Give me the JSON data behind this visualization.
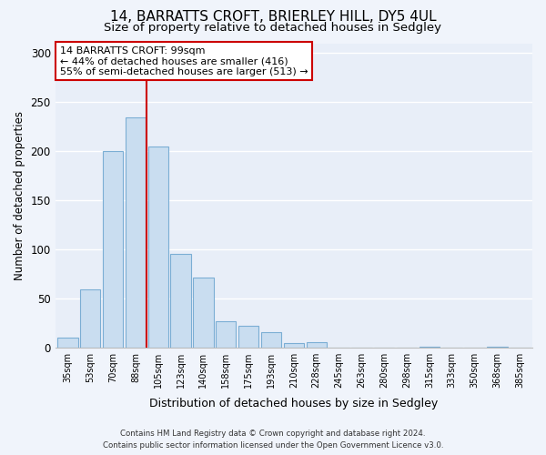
{
  "title": "14, BARRATTS CROFT, BRIERLEY HILL, DY5 4UL",
  "subtitle": "Size of property relative to detached houses in Sedgley",
  "xlabel": "Distribution of detached houses by size in Sedgley",
  "ylabel": "Number of detached properties",
  "bar_labels": [
    "35sqm",
    "53sqm",
    "70sqm",
    "88sqm",
    "105sqm",
    "123sqm",
    "140sqm",
    "158sqm",
    "175sqm",
    "193sqm",
    "210sqm",
    "228sqm",
    "245sqm",
    "263sqm",
    "280sqm",
    "298sqm",
    "315sqm",
    "333sqm",
    "350sqm",
    "368sqm",
    "385sqm"
  ],
  "bar_values": [
    10,
    59,
    200,
    234,
    205,
    95,
    71,
    27,
    22,
    15,
    4,
    5,
    0,
    0,
    0,
    0,
    1,
    0,
    0,
    1,
    0
  ],
  "bar_color": "#c9ddf0",
  "bar_edge_color": "#7baed4",
  "vline_x_idx": 3.5,
  "vline_color": "#cc0000",
  "ylim": [
    0,
    310
  ],
  "yticks": [
    0,
    50,
    100,
    150,
    200,
    250,
    300
  ],
  "annotation_title": "14 BARRATTS CROFT: 99sqm",
  "annotation_line1": "← 44% of detached houses are smaller (416)",
  "annotation_line2": "55% of semi-detached houses are larger (513) →",
  "annotation_box_facecolor": "#ffffff",
  "annotation_box_edgecolor": "#cc0000",
  "footer1": "Contains HM Land Registry data © Crown copyright and database right 2024.",
  "footer2": "Contains public sector information licensed under the Open Government Licence v3.0.",
  "bg_color": "#f0f4fb",
  "plot_bg_color": "#e8eef8",
  "grid_color": "#ffffff",
  "title_fontsize": 11,
  "subtitle_fontsize": 9.5,
  "title_fontweight": "normal"
}
